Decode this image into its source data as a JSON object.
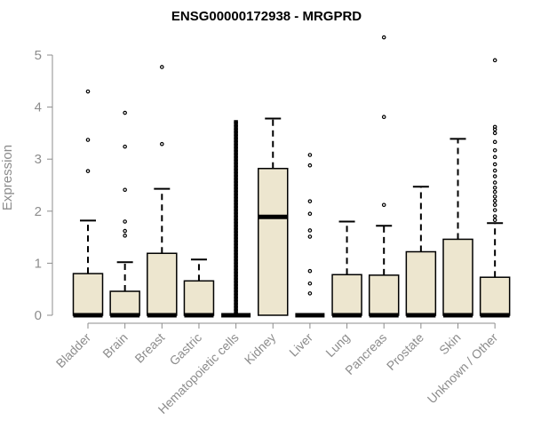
{
  "chart_data": {
    "type": "boxplot",
    "title": "ENSG00000172938 - MRGPRD",
    "ylabel": "Expression",
    "xlabel": "",
    "ylim": [
      0,
      5
    ],
    "yticks": [
      0,
      1,
      2,
      3,
      4,
      5
    ],
    "box_fill": "#ede6cf",
    "box_stroke": "#000000",
    "axis_color": "#8c8c8c",
    "categories": [
      "Bladder",
      "Brain",
      "Breast",
      "Gastric",
      "Hematopoietic cells",
      "Kidney",
      "Liver",
      "Lung",
      "Pancreas",
      "Prostate",
      "Skin",
      "Unknown / Other"
    ],
    "boxes": [
      {
        "name": "Bladder",
        "min": 0,
        "q1": 0,
        "median": 0,
        "q3": 0.8,
        "max": 1.82,
        "outliers": [
          2.77,
          3.37,
          4.3
        ]
      },
      {
        "name": "Brain",
        "min": 0,
        "q1": 0,
        "median": 0,
        "q3": 0.46,
        "max": 1.02,
        "outliers": [
          1.53,
          1.62,
          1.8,
          2.41,
          3.24,
          3.89
        ]
      },
      {
        "name": "Breast",
        "min": 0,
        "q1": 0,
        "median": 0,
        "q3": 1.19,
        "max": 2.43,
        "outliers": [
          3.29,
          4.77
        ]
      },
      {
        "name": "Gastric",
        "min": 0,
        "q1": 0,
        "median": 0,
        "q3": 0.66,
        "max": 1.07,
        "outliers": []
      },
      {
        "name": "Hematopoietic cells",
        "min": 0,
        "q1": 0,
        "median": 0,
        "q3": 0,
        "max": 0,
        "outliers_dense": [
          0.04,
          3.75
        ]
      },
      {
        "name": "Kidney",
        "min": 0,
        "q1": 0,
        "median": 1.89,
        "q3": 2.82,
        "max": 3.78,
        "outliers": []
      },
      {
        "name": "Liver",
        "min": 0,
        "q1": 0,
        "median": 0,
        "q3": 0,
        "max": 0,
        "outliers": [
          0.42,
          0.61,
          0.85,
          1.51,
          1.63,
          1.95,
          2.19,
          2.88,
          3.08
        ]
      },
      {
        "name": "Lung",
        "min": 0,
        "q1": 0,
        "median": 0,
        "q3": 0.78,
        "max": 1.8,
        "outliers": []
      },
      {
        "name": "Pancreas",
        "min": 0,
        "q1": 0,
        "median": 0,
        "q3": 0.77,
        "max": 1.72,
        "outliers": [
          2.12,
          3.81,
          5.34
        ]
      },
      {
        "name": "Prostate",
        "min": 0,
        "q1": 0,
        "median": 0,
        "q3": 1.22,
        "max": 2.47,
        "outliers": []
      },
      {
        "name": "Skin",
        "min": 0,
        "q1": 0,
        "median": 0,
        "q3": 1.46,
        "max": 3.39,
        "outliers": []
      },
      {
        "name": "Unknown / Other",
        "min": 0,
        "q1": 0,
        "median": 0,
        "q3": 0.73,
        "max": 1.77,
        "outliers": [
          1.83,
          1.9,
          2.02,
          2.12,
          2.2,
          2.28,
          2.37,
          2.45,
          2.55,
          2.67,
          2.78,
          2.9,
          3.04,
          3.17,
          3.33,
          3.5,
          3.57,
          3.62,
          4.9
        ]
      }
    ]
  }
}
